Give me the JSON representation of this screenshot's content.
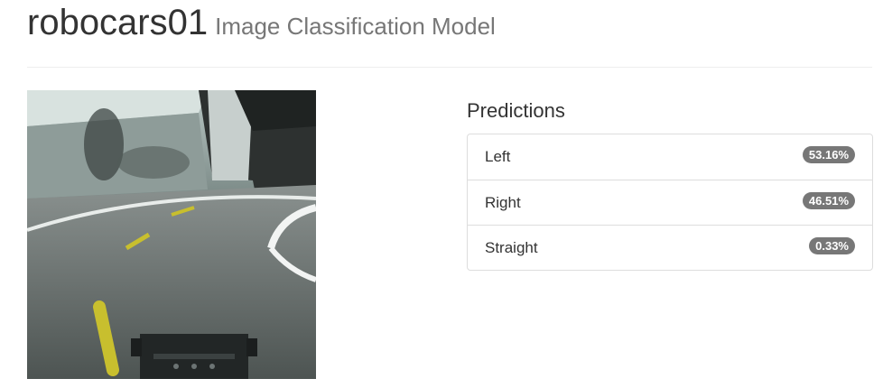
{
  "header": {
    "model_name": "robocars01",
    "subtitle": "Image Classification Model"
  },
  "image": {
    "alt": "camera frame from robocar"
  },
  "predictions": {
    "heading": "Predictions",
    "items": [
      {
        "label": "Left",
        "value": "53.16%"
      },
      {
        "label": "Right",
        "value": "46.51%"
      },
      {
        "label": "Straight",
        "value": "0.33%"
      }
    ]
  },
  "colors": {
    "badge": "#777777",
    "border": "#dddddd",
    "subtitle": "#777777"
  }
}
